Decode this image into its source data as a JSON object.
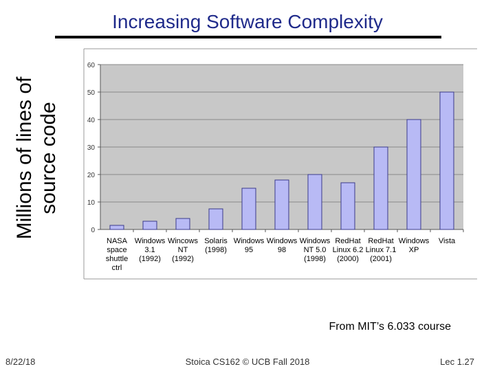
{
  "slide": {
    "title": "Increasing Software Complexity",
    "source": "From MIT’s 6.033 course",
    "footer_date": "8/22/18",
    "footer_center": "Stoica CS162 © UCB Fall 2018",
    "footer_page": "Lec 1.27"
  },
  "ylabel_lines": [
    "Millions of lines of",
    "source code"
  ],
  "chart_data": {
    "type": "bar",
    "title": "Increasing Software Complexity",
    "ylabel": "Millions of lines of source code",
    "xlabel": "",
    "ylim": [
      0,
      60
    ],
    "yticks": [
      0,
      10,
      20,
      30,
      40,
      50,
      60
    ],
    "grid": true,
    "categories": [
      [
        "NASA",
        "space",
        "shuttle",
        "ctrl"
      ],
      [
        "Windows",
        "3.1",
        "(1992)"
      ],
      [
        "Wincows",
        "NT",
        "(1992)"
      ],
      [
        "Solaris",
        "(1998)"
      ],
      [
        "Windows",
        "95"
      ],
      [
        "Windows",
        "98"
      ],
      [
        "Windows",
        "NT 5.0",
        "(1998)"
      ],
      [
        "RedHat",
        "Linux 6.2",
        "(2000)"
      ],
      [
        "RedHat",
        "Linux 7.1",
        "(2001)"
      ],
      [
        "Windows",
        "XP"
      ],
      [
        "Vista"
      ]
    ],
    "values": [
      1.5,
      3,
      4,
      7.5,
      15,
      18,
      20,
      17,
      30,
      40,
      50
    ],
    "colors": {
      "bar": "#b8baf5",
      "barEdge": "#3a3a8a",
      "plot": "#c8c8c8",
      "grid": "#888888"
    }
  }
}
